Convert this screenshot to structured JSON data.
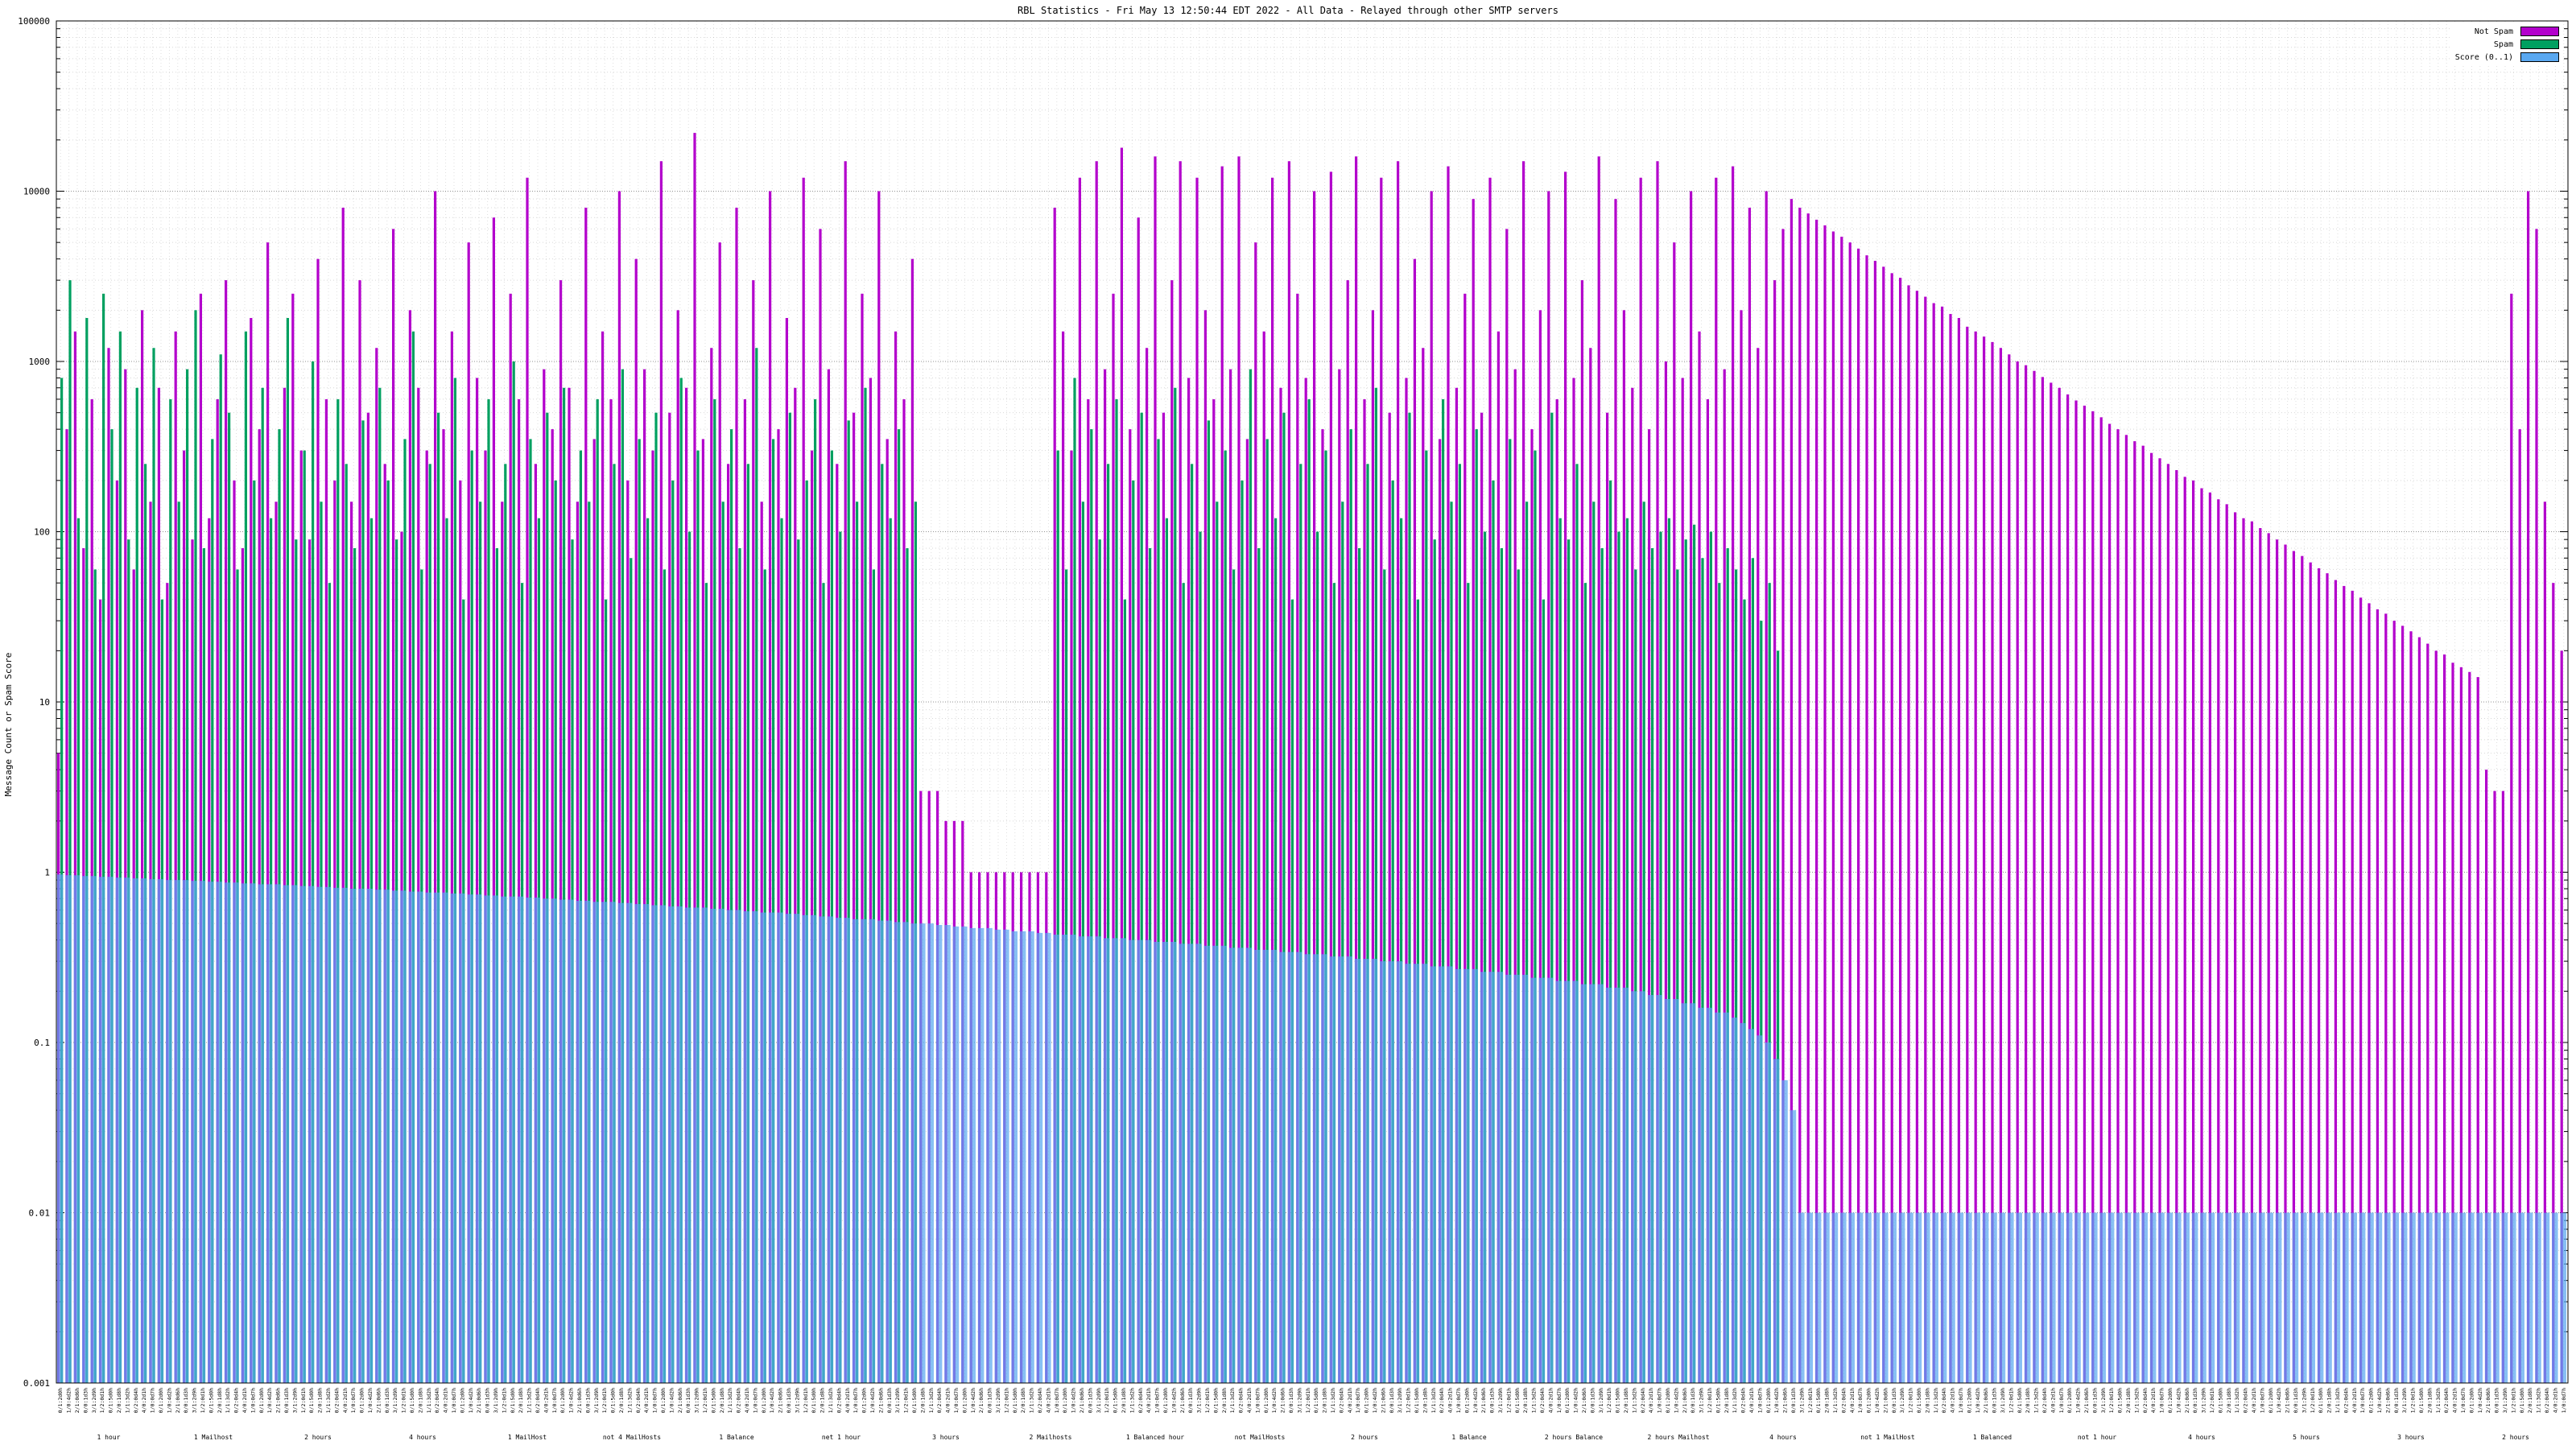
{
  "page": {
    "background": "#ffffff"
  },
  "chart_data": {
    "type": "bar",
    "title": "RBL Statistics - Fri May 13 12:50:44 EDT 2022 - All Data - Relayed through other SMTP servers",
    "xlabel": "",
    "ylabel": "Message Count or Spam Score",
    "yscale": "log",
    "ylim": [
      0.001,
      100000
    ],
    "ytick_labels": [
      "100000",
      "10000",
      "1000",
      "100",
      "10",
      "1",
      "0.1",
      "0.01",
      "0.001"
    ],
    "grid": true,
    "legend_position": "top-right",
    "legend": [
      {
        "name": "Not Spam",
        "color": "#b300cc"
      },
      {
        "name": "Spam",
        "color": "#00a060"
      },
      {
        "name": "Score (0..1)",
        "color": "#5aa8f0"
      }
    ],
    "x_tick_sample_labels": [
      "0/1:2d0h",
      "1/0:4d2h",
      "2/1:0d6h",
      "0/0:1d3h",
      "3/1:2d9h",
      "1/2:0d1h",
      "0/1:5d0h",
      "2/0:1d8h",
      "1/1:3d2h",
      "0/2:0d4h",
      "4/0:2d1h",
      "1/0:0d7h"
    ],
    "x_group_labels": [
      "1 hour",
      "1 Mailhost",
      "2 hours",
      "4 hours",
      "1 MailHost",
      "not 4 MailHosts",
      "1 Balance",
      "net 1 hour",
      "3 hours",
      "2 Mailhosts",
      "1 Balanced hour",
      "not MailHosts",
      "2 hours",
      "1 Balance",
      "2 hours Balance",
      "2 hours Mailhost",
      "4 hours",
      "not 1 MailHost",
      "1 Balanced",
      "not 1 hour",
      "4 hours",
      "5 hours",
      "3 hours",
      "2 hours"
    ],
    "series": [
      {
        "name": "Not Spam",
        "color": "#b300cc",
        "values": [
          5,
          400,
          1500,
          80,
          600,
          40,
          1200,
          200,
          900,
          60,
          2000,
          150,
          700,
          50,
          1500,
          300,
          90,
          2500,
          120,
          600,
          3000,
          200,
          80,
          1800,
          400,
          5000,
          150,
          700,
          2500,
          300,
          90,
          4000,
          600,
          200,
          8000,
          150,
          3000,
          500,
          1200,
          250,
          6000,
          100,
          2000,
          700,
          300,
          10000,
          400,
          1500,
          200,
          5000,
          800,
          300,
          7000,
          150,
          2500,
          600,
          12000,
          250,
          900,
          400,
          3000,
          700,
          150,
          8000,
          350,
          1500,
          600,
          10000,
          200,
          4000,
          900,
          300,
          15000,
          500,
          2000,
          700,
          22000,
          350,
          1200,
          5000,
          250,
          8000,
          600,
          3000,
          150,
          10000,
          400,
          1800,
          700,
          12000,
          300,
          6000,
          900,
          250,
          15000,
          500,
          2500,
          800,
          10000,
          350,
          1500,
          600,
          4000,
          3,
          3,
          3,
          2,
          2,
          2,
          1,
          1,
          1,
          1,
          1,
          1,
          1,
          1,
          1,
          1,
          8000,
          1500,
          300,
          12000,
          600,
          15000,
          900,
          2500,
          18000,
          400,
          7000,
          1200,
          16000,
          500,
          3000,
          15000,
          800,
          12000,
          2000,
          600,
          14000,
          900,
          16000,
          350,
          5000,
          1500,
          12000,
          700,
          15000,
          2500,
          800,
          10000,
          400,
          13000,
          900,
          3000,
          16000,
          600,
          2000,
          12000,
          500,
          15000,
          800,
          4000,
          1200,
          10000,
          350,
          14000,
          700,
          2500,
          9000,
          500,
          12000,
          1500,
          6000,
          900,
          15000,
          400,
          2000,
          10000,
          600,
          13000,
          800,
          3000,
          1200,
          16000,
          500,
          9000,
          2000,
          700,
          12000,
          400,
          15000,
          1000,
          5000,
          800,
          10000,
          1500,
          600,
          12000,
          900,
          14000,
          2000,
          8000,
          1200,
          10000,
          3000,
          6000,
          9000,
          8000,
          7400,
          6800,
          6300,
          5800,
          5400,
          5000,
          4600,
          4200,
          3900,
          3600,
          3300,
          3100,
          2800,
          2600,
          2400,
          2200,
          2100,
          1900,
          1800,
          1600,
          1500,
          1400,
          1300,
          1200,
          1100,
          1000,
          950,
          880,
          810,
          750,
          700,
          640,
          590,
          550,
          510,
          470,
          430,
          400,
          370,
          340,
          320,
          290,
          270,
          250,
          230,
          210,
          200,
          180,
          170,
          155,
          145,
          130,
          120,
          115,
          105,
          98,
          90,
          84,
          77,
          72,
          66,
          61,
          57,
          52,
          48,
          45,
          41,
          38,
          35,
          33,
          30,
          28,
          26,
          24,
          22,
          20,
          19,
          17,
          16,
          15,
          14,
          4,
          3,
          3,
          2500,
          400,
          10000,
          6000,
          150,
          50,
          20
        ]
      },
      {
        "name": "Spam",
        "color": "#00a060",
        "values": [
          800,
          3000,
          120,
          1800,
          60,
          2500,
          400,
          1500,
          90,
          700,
          250,
          1200,
          40,
          600,
          150,
          900,
          2000,
          80,
          350,
          1100,
          500,
          60,
          1500,
          200,
          700,
          120,
          400,
          1800,
          90,
          300,
          1000,
          150,
          50,
          600,
          250,
          80,
          450,
          120,
          700,
          200,
          90,
          350,
          1500,
          60,
          250,
          500,
          120,
          800,
          40,
          300,
          150,
          600,
          80,
          250,
          1000,
          50,
          350,
          120,
          500,
          200,
          700,
          90,
          300,
          150,
          600,
          40,
          250,
          900,
          70,
          350,
          120,
          500,
          60,
          200,
          800,
          100,
          300,
          50,
          600,
          150,
          400,
          80,
          250,
          1200,
          60,
          350,
          120,
          500,
          90,
          200,
          600,
          50,
          300,
          100,
          450,
          150,
          700,
          60,
          250,
          120,
          400,
          80,
          150,
          0,
          0,
          0,
          0,
          0,
          0,
          0,
          0,
          0,
          0,
          0,
          0,
          0,
          0,
          0,
          0,
          300,
          60,
          800,
          150,
          400,
          90,
          250,
          600,
          40,
          200,
          500,
          80,
          350,
          120,
          700,
          50,
          250,
          100,
          450,
          150,
          300,
          60,
          200,
          900,
          80,
          350,
          120,
          500,
          40,
          250,
          600,
          100,
          300,
          50,
          150,
          400,
          80,
          250,
          700,
          60,
          200,
          120,
          500,
          40,
          300,
          90,
          600,
          150,
          250,
          50,
          400,
          100,
          200,
          80,
          350,
          60,
          150,
          300,
          40,
          500,
          120,
          90,
          250,
          50,
          150,
          80,
          200,
          100,
          120,
          60,
          150,
          80,
          100,
          120,
          60,
          90,
          110,
          70,
          100,
          50,
          80,
          60,
          40,
          70,
          30,
          50,
          20,
          0,
          0,
          0,
          0,
          0,
          0,
          0,
          0,
          0,
          0,
          0,
          0,
          0,
          0,
          0,
          0,
          0,
          0,
          0,
          0,
          0,
          0,
          0,
          0,
          0,
          0,
          0,
          0,
          0,
          0,
          0,
          0,
          0,
          0,
          0,
          0,
          0,
          0,
          0,
          0,
          0,
          0,
          0,
          0,
          0,
          0,
          0,
          0,
          0,
          0,
          0,
          0,
          0,
          0,
          0,
          0,
          0,
          0,
          0,
          0,
          0,
          0,
          0,
          0,
          0,
          0,
          0,
          0,
          0,
          0,
          0,
          0,
          0,
          0,
          0,
          0,
          0,
          0,
          0,
          0,
          0,
          0,
          0,
          0,
          0,
          0,
          0,
          0,
          0,
          0,
          0,
          0,
          0,
          0
        ]
      },
      {
        "name": "Score (0..1)",
        "color": "#5aa8f0",
        "values": [
          0.97,
          0.96,
          0.96,
          0.95,
          0.95,
          0.94,
          0.94,
          0.93,
          0.93,
          0.92,
          0.92,
          0.91,
          0.91,
          0.9,
          0.9,
          0.9,
          0.89,
          0.89,
          0.88,
          0.88,
          0.87,
          0.87,
          0.86,
          0.86,
          0.85,
          0.85,
          0.85,
          0.84,
          0.84,
          0.83,
          0.83,
          0.82,
          0.82,
          0.81,
          0.81,
          0.8,
          0.8,
          0.8,
          0.79,
          0.79,
          0.78,
          0.78,
          0.77,
          0.77,
          0.76,
          0.76,
          0.76,
          0.75,
          0.75,
          0.74,
          0.74,
          0.73,
          0.73,
          0.72,
          0.72,
          0.72,
          0.71,
          0.71,
          0.7,
          0.7,
          0.69,
          0.69,
          0.68,
          0.68,
          0.67,
          0.67,
          0.67,
          0.66,
          0.66,
          0.65,
          0.65,
          0.64,
          0.64,
          0.63,
          0.63,
          0.62,
          0.62,
          0.62,
          0.61,
          0.61,
          0.6,
          0.6,
          0.59,
          0.59,
          0.58,
          0.58,
          0.58,
          0.57,
          0.57,
          0.56,
          0.56,
          0.55,
          0.55,
          0.54,
          0.54,
          0.53,
          0.53,
          0.53,
          0.52,
          0.52,
          0.51,
          0.51,
          0.5,
          0.5,
          0.5,
          0.49,
          0.49,
          0.48,
          0.48,
          0.47,
          0.47,
          0.47,
          0.46,
          0.46,
          0.45,
          0.45,
          0.45,
          0.44,
          0.44,
          0.43,
          0.43,
          0.43,
          0.42,
          0.42,
          0.42,
          0.41,
          0.41,
          0.41,
          0.4,
          0.4,
          0.4,
          0.39,
          0.39,
          0.39,
          0.38,
          0.38,
          0.38,
          0.37,
          0.37,
          0.37,
          0.36,
          0.36,
          0.36,
          0.35,
          0.35,
          0.35,
          0.34,
          0.34,
          0.34,
          0.33,
          0.33,
          0.33,
          0.32,
          0.32,
          0.32,
          0.31,
          0.31,
          0.31,
          0.3,
          0.3,
          0.3,
          0.29,
          0.29,
          0.29,
          0.28,
          0.28,
          0.28,
          0.27,
          0.27,
          0.27,
          0.26,
          0.26,
          0.26,
          0.25,
          0.25,
          0.25,
          0.24,
          0.24,
          0.24,
          0.23,
          0.23,
          0.23,
          0.22,
          0.22,
          0.22,
          0.21,
          0.21,
          0.21,
          0.2,
          0.2,
          0.19,
          0.19,
          0.18,
          0.18,
          0.17,
          0.17,
          0.16,
          0.16,
          0.15,
          0.15,
          0.14,
          0.13,
          0.12,
          0.11,
          0.1,
          0.08,
          0.06,
          0.04,
          0.01,
          0.01,
          0.01,
          0.01,
          0.01,
          0.01,
          0.01,
          0.01,
          0.01,
          0.01,
          0.01,
          0.01,
          0.01,
          0.01,
          0.01,
          0.01,
          0.01,
          0.01,
          0.01,
          0.01,
          0.01,
          0.01,
          0.01,
          0.01,
          0.01,
          0.01,
          0.01,
          0.01,
          0.01,
          0.01,
          0.01,
          0.01,
          0.01,
          0.01,
          0.01,
          0.01,
          0.01,
          0.01,
          0.01,
          0.01,
          0.01,
          0.01,
          0.01,
          0.01,
          0.01,
          0.01,
          0.01,
          0.01,
          0.01,
          0.01,
          0.01,
          0.01,
          0.01,
          0.01,
          0.01,
          0.01,
          0.01,
          0.01,
          0.01,
          0.01,
          0.01,
          0.01,
          0.01,
          0.01,
          0.01,
          0.01,
          0.01,
          0.01,
          0.01,
          0.01,
          0.01,
          0.01,
          0.01,
          0.01,
          0.01,
          0.01,
          0.01,
          0.01,
          0.01,
          0.01,
          0.01,
          0.01,
          0.01,
          0.01,
          0.01,
          0.01,
          0.01,
          0.01,
          0.01,
          0.01,
          0.01,
          0.01
        ]
      }
    ]
  }
}
